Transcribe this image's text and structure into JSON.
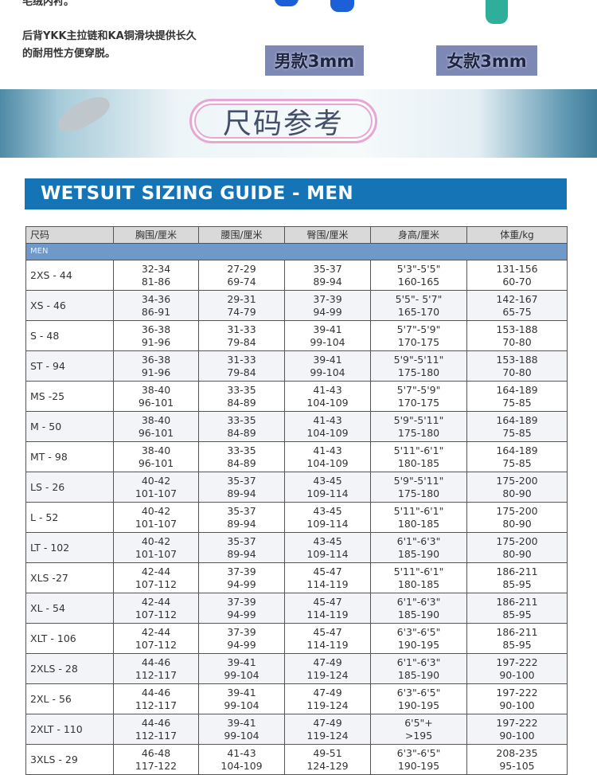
{
  "intro": {
    "line0": "毛绒内衬。",
    "line1": "后背YKK主拉链和KA铜滑块提供长久",
    "line2": "的耐用性方便穿脱。"
  },
  "products": [
    {
      "label": "男款3mm",
      "color": "#1c5fd6"
    },
    {
      "label": "女款3mm",
      "color": "#2fae9c"
    }
  ],
  "banner": {
    "title": "尺码参考"
  },
  "guide": {
    "title": "WETSUIT SIZING GUIDE - MEN",
    "headers": [
      "尺码",
      "胸围/厘米",
      "腰围/厘米",
      "臀围/厘米",
      "身高/厘米",
      "体重/kg"
    ],
    "section": "MEN",
    "rows": [
      [
        "2XS - 44",
        "32-34",
        "81-86",
        "27-29",
        "69-74",
        "35-37",
        "89-94",
        "5'3\"-5'5\"",
        "160-165",
        "131-156",
        "60-70"
      ],
      [
        "XS - 46",
        "34-36",
        "86-91",
        "29-31",
        "74-79",
        "37-39",
        "94-99",
        "5'5\"- 5'7\"",
        "165-170",
        "142-167",
        "65-75"
      ],
      [
        "S - 48",
        "36-38",
        "91-96",
        "31-33",
        "79-84",
        "39-41",
        "99-104",
        "5'7\"-5'9\"",
        "170-175",
        "153-188",
        "70-80"
      ],
      [
        "ST - 94",
        "36-38",
        "91-96",
        "31-33",
        "79-84",
        "39-41",
        "99-104",
        "5'9\"-5'11\"",
        "175-180",
        "153-188",
        "70-80"
      ],
      [
        "MS -25",
        "38-40",
        "96-101",
        "33-35",
        "84-89",
        "41-43",
        "104-109",
        "5'7\"-5'9\"",
        "170-175",
        "164-189",
        "75-85"
      ],
      [
        "M - 50",
        "38-40",
        "96-101",
        "33-35",
        "84-89",
        "41-43",
        "104-109",
        "5'9\"-5'11\"",
        "175-180",
        "164-189",
        "75-85"
      ],
      [
        "MT - 98",
        "38-40",
        "96-101",
        "33-35",
        "84-89",
        "41-43",
        "104-109",
        "5'11\"-6'1\"",
        "180-185",
        "164-189",
        "75-85"
      ],
      [
        "LS - 26",
        "40-42",
        "101-107",
        "35-37",
        "89-94",
        "43-45",
        "109-114",
        "5'9\"-5'11\"",
        "175-180",
        "175-200",
        "80-90"
      ],
      [
        "L - 52",
        "40-42",
        "101-107",
        "35-37",
        "89-94",
        "43-45",
        "109-114",
        "5'11\"-6'1\"",
        "180-185",
        "175-200",
        "80-90"
      ],
      [
        "LT - 102",
        "40-42",
        "101-107",
        "35-37",
        "89-94",
        "43-45",
        "109-114",
        "6'1\"-6'3\"",
        "185-190",
        "175-200",
        "80-90"
      ],
      [
        "XLS -27",
        "42-44",
        "107-112",
        "37-39",
        "94-99",
        "45-47",
        "114-119",
        "5'11\"-6'1\"",
        "180-185",
        "186-211",
        "85-95"
      ],
      [
        "XL - 54",
        "42-44",
        "107-112",
        "37-39",
        "94-99",
        "45-47",
        "114-119",
        "6'1\"-6'3\"",
        "185-190",
        "186-211",
        "85-95"
      ],
      [
        "XLT - 106",
        "42-44",
        "107-112",
        "37-39",
        "94-99",
        "45-47",
        "114-119",
        "6'3\"-6'5\"",
        "190-195",
        "186-211",
        "85-95"
      ],
      [
        "2XLS - 28",
        "44-46",
        "112-117",
        "39-41",
        "99-104",
        "47-49",
        "119-124",
        "6'1\"-6'3\"",
        "185-190",
        "197-222",
        "90-100"
      ],
      [
        "2XL - 56",
        "44-46",
        "112-117",
        "39-41",
        "99-104",
        "47-49",
        "119-124",
        "6'3\"-6'5\"",
        "190-195",
        "197-222",
        "90-100"
      ],
      [
        "2XLT - 110",
        "44-46",
        "112-117",
        "39-41",
        "99-104",
        "47-49",
        "119-124",
        "6'5\"+",
        ">195",
        "197-222",
        "90-100"
      ],
      [
        "3XLS - 29",
        "46-48",
        "117-122",
        "41-43",
        "104-109",
        "49-51",
        "124-129",
        "6'3\"-6'5\"",
        "190-195",
        "208-235",
        "95-105"
      ]
    ]
  }
}
